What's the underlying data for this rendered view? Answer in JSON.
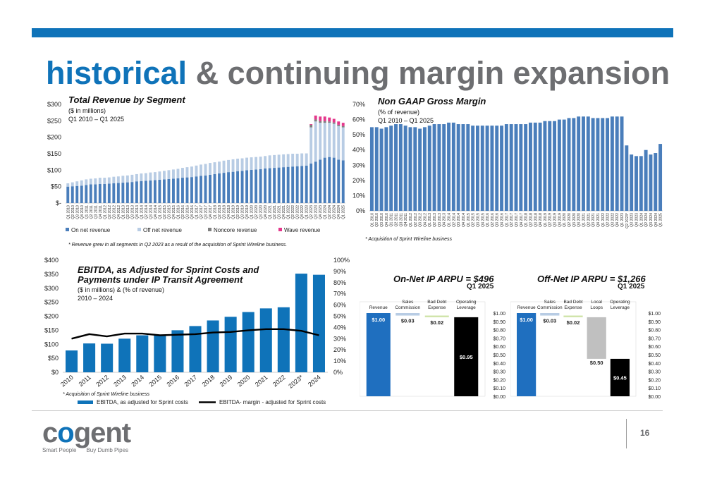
{
  "headline": {
    "highlight": "historical",
    "rest": "& continuing margin expansion"
  },
  "page_number": "16",
  "logo": {
    "word_pre": "c",
    "word_o": "o",
    "word_post": "gent",
    "tagline_left": "Smart People",
    "tagline_right": "Buy Dumb Pipes"
  },
  "colors": {
    "brand_blue": "#0f73b9",
    "grey": "#6d6e71",
    "on_net": "#4a7ebb",
    "off_net": "#b8cce4",
    "noncore": "#7f7f7f",
    "wave": "#e4388c"
  },
  "chart_data": [
    {
      "id": "revenue",
      "type": "bar",
      "title": "Total Revenue by Segment",
      "subtitle1": "($ in millions)",
      "subtitle2": "Q1 2010 – Q1 2025",
      "note": "*  Revenue grew in all segments in Q2 2023 as a result of  the acquisition of Sprint Wireline business.",
      "ylim": [
        0,
        300
      ],
      "yticks": [
        "$-",
        "$50",
        "$100",
        "$150",
        "$200",
        "$250",
        "$300"
      ],
      "categories": [
        "Q1 2010",
        "Q2 2010",
        "Q3 2010",
        "Q4 2010",
        "Q1 2011",
        "Q2 2011",
        "Q3 2011",
        "Q4 2011",
        "Q1 2012",
        "Q2 2012",
        "Q3 2012",
        "Q4 2012",
        "Q1 2013",
        "Q2 2013",
        "Q3 2013",
        "Q4 2013",
        "Q1 2014",
        "Q2 2014",
        "Q3 2014",
        "Q4 2014",
        "Q1 2015",
        "Q2 2015",
        "Q3 2015",
        "Q4 2015",
        "Q1 2016",
        "Q2 2016",
        "Q3 2016",
        "Q4 2016",
        "Q1 2017",
        "Q2 2017",
        "Q3 2017",
        "Q4 2017",
        "Q1 2018",
        "Q2 2018",
        "Q3 2018",
        "Q4 2018",
        "Q1 2019",
        "Q2 2019",
        "Q3 2019",
        "Q4 2019",
        "Q1 2020",
        "Q2 2020",
        "Q3 2020",
        "Q4 2020",
        "Q1 2021",
        "Q2 2021",
        "Q3 2021",
        "Q4 2021",
        "Q1 2022",
        "Q2 2022",
        "Q3 2022",
        "Q4 2022",
        "Q1 2023",
        "Q2 2023",
        "Q3 2023",
        "Q4 2023",
        "Q1 2024",
        "Q2 2024",
        "Q3 2024",
        "Q4 2024",
        "Q1 2025"
      ],
      "legend": [
        "On net revenue",
        "Off net revenue",
        "Noncore revenue",
        "Wave revenue"
      ],
      "series": [
        {
          "name": "On net revenue",
          "values": [
            50,
            51,
            52,
            53,
            55,
            57,
            57,
            58,
            58,
            59,
            60,
            61,
            62,
            63,
            64,
            66,
            67,
            68,
            69,
            70,
            71,
            72,
            73,
            74,
            75,
            77,
            78,
            79,
            81,
            83,
            84,
            86,
            88,
            90,
            92,
            94,
            95,
            97,
            98,
            100,
            101,
            102,
            103,
            105,
            106,
            107,
            108,
            109,
            110,
            111,
            112,
            113,
            114,
            120,
            126,
            132,
            138,
            140,
            138,
            132,
            130
          ]
        },
        {
          "name": "Off net revenue",
          "values": [
            10,
            12,
            14,
            16,
            17,
            17,
            18,
            19,
            19,
            19,
            20,
            20,
            21,
            21,
            22,
            22,
            23,
            23,
            24,
            24,
            25,
            26,
            27,
            28,
            29,
            30,
            31,
            32,
            33,
            34,
            35,
            36,
            36,
            36,
            37,
            37,
            38,
            38,
            38,
            38,
            38,
            38,
            38,
            38,
            39,
            39,
            39,
            39,
            39,
            39,
            38,
            38,
            37,
            110,
            122,
            112,
            106,
            104,
            103,
            102,
            100
          ]
        },
        {
          "name": "Noncore revenue",
          "values": [
            0,
            0,
            0,
            0,
            0,
            0,
            0,
            0,
            0,
            0,
            0,
            0,
            0,
            0,
            0,
            0,
            0,
            0,
            0,
            0,
            0,
            0,
            0,
            0,
            0,
            0,
            0,
            0,
            0,
            0,
            0,
            0,
            0,
            0,
            0,
            0,
            0,
            0,
            0,
            0,
            0,
            0,
            0,
            0,
            0,
            0,
            0,
            0,
            0,
            0,
            0,
            0,
            0,
            8,
            6,
            5,
            5,
            4,
            4,
            4,
            4
          ]
        },
        {
          "name": "Wave revenue",
          "values": [
            0,
            0,
            0,
            0,
            0,
            0,
            0,
            0,
            0,
            0,
            0,
            0,
            0,
            0,
            0,
            0,
            0,
            0,
            0,
            0,
            0,
            0,
            0,
            0,
            0,
            0,
            0,
            0,
            0,
            0,
            0,
            0,
            0,
            0,
            0,
            0,
            0,
            0,
            0,
            0,
            0,
            0,
            0,
            0,
            0,
            0,
            0,
            0,
            0,
            0,
            0,
            0,
            0,
            2,
            12,
            14,
            14,
            12,
            11,
            10,
            10
          ]
        }
      ]
    },
    {
      "id": "gross_margin",
      "type": "bar",
      "title": "Non GAAP Gross Margin",
      "subtitle1": "(% of revenue)",
      "subtitle2": "Q1 2010 – Q1 2025",
      "note": "* Acquisition of Sprint Wireline business",
      "ylim": [
        0,
        70
      ],
      "yticks": [
        "0%",
        "10%",
        "20%",
        "30%",
        "40%",
        "50%",
        "60%",
        "70%"
      ],
      "categories": [
        "Q1 2010",
        "Q2 2010",
        "Q3 2010",
        "Q4 2010",
        "Q1 2011",
        "Q2 2011",
        "Q3 2011",
        "Q4 2011",
        "Q1 2012",
        "Q2 2012",
        "Q3 2012",
        "Q4 2012",
        "Q1 2013",
        "Q2 2013",
        "Q3 2013",
        "Q4 2013",
        "Q1 2014",
        "Q2 2014",
        "Q3 2014",
        "Q4 2014",
        "Q1 2015",
        "Q2 2015",
        "Q3 2015",
        "Q4 2015",
        "Q1 2016",
        "Q2 2016",
        "Q3 2016",
        "Q4 2016",
        "Q1 2017",
        "Q2 2017",
        "Q3 2017",
        "Q4 2017",
        "Q1 2018",
        "Q2 2018",
        "Q3 2018",
        "Q4 2018",
        "Q1 2019",
        "Q2 2019",
        "Q3 2019",
        "Q4 2019",
        "Q1 2020",
        "Q2 2020",
        "Q3 2020",
        "Q4 2020",
        "Q1 2021",
        "Q2 2021",
        "Q3 2021",
        "Q4 2021",
        "Q1 2022",
        "Q2 2022",
        "Q3 2022",
        "Q4 2022",
        "Q1 2023",
        "Q2 2023*",
        "Q3 2023",
        "Q4 2023",
        "Q1 2024",
        "Q2 2024",
        "Q3 2024",
        "Q4 2024",
        "Q1 2025"
      ],
      "values": [
        55,
        55,
        54,
        55,
        56,
        57,
        57,
        56,
        55,
        55,
        54,
        55,
        56,
        57,
        57,
        57,
        58,
        58,
        57,
        57,
        57,
        56,
        56,
        56,
        56,
        56,
        56,
        56,
        57,
        57,
        57,
        57,
        57,
        58,
        58,
        58,
        59,
        59,
        59,
        60,
        60,
        61,
        61,
        62,
        62,
        62,
        61,
        61,
        61,
        61,
        62,
        62,
        62,
        43,
        37,
        36,
        36,
        40,
        37,
        38,
        44
      ]
    },
    {
      "id": "ebitda",
      "type": "bar",
      "title_line1": "EBITDA, as Adjusted for Sprint Costs and",
      "title_line2": "Payments under IP Transit Agreement",
      "subtitle1": "($ in millions) & (% of revenue)",
      "subtitle2": "2010 – 2024",
      "note": "* Acquisition of Sprint Wireline business",
      "ylim": [
        0,
        400
      ],
      "y2lim": [
        0,
        100
      ],
      "yticks": [
        "$0",
        "$50",
        "$100",
        "$150",
        "$200",
        "$250",
        "$300",
        "$350",
        "$400"
      ],
      "y2ticks": [
        "0%",
        "10%",
        "20%",
        "30%",
        "40%",
        "50%",
        "60%",
        "70%",
        "80%",
        "90%",
        "100%"
      ],
      "categories": [
        "2010",
        "2011",
        "2012",
        "2013",
        "2014",
        "2015",
        "2016",
        "2017",
        "2018",
        "2019",
        "2020",
        "2021",
        "2022",
        "2023*",
        "2024"
      ],
      "legend": [
        "EBITDA, as adjusted for Sprint costs",
        "EBITDA- margin - adjusted for Sprint costs"
      ],
      "series": [
        {
          "name": "EBITDA, as adjusted for Sprint costs",
          "values": [
            78,
            103,
            102,
            120,
            132,
            132,
            150,
            165,
            185,
            198,
            215,
            228,
            232,
            352,
            348
          ]
        },
        {
          "name": "EBITDA- margin - adjusted for Sprint costs",
          "values": [
            30,
            34,
            32,
            34.5,
            34.5,
            33,
            33.5,
            34,
            35.5,
            36,
            37.5,
            38.5,
            38.5,
            37,
            33
          ]
        }
      ]
    },
    {
      "id": "on_net_arpu",
      "type": "bar",
      "title": "On-Net IP ARPU = $496",
      "period": "Q1 2025",
      "categories": [
        "Revenue",
        "Sales Commission",
        "Bad Debt Expense",
        "Operating Leverage"
      ],
      "values": [
        1.0,
        0.03,
        0.02,
        0.95
      ],
      "labels": [
        "$1.00",
        "$0.03",
        "$0.02",
        "$0.95"
      ],
      "ylim": [
        0,
        1
      ],
      "yticks": [
        "$0.00",
        "$0.10",
        "$0.20",
        "$0.30",
        "$0.40",
        "$0.50",
        "$0.60",
        "$0.70",
        "$0.80",
        "$0.90",
        "$1.00"
      ]
    },
    {
      "id": "off_net_arpu",
      "type": "bar",
      "title": "Off-Net IP ARPU = $1,266",
      "period": "Q1 2025",
      "categories": [
        "Revenue",
        "Sales Commission",
        "Bad Debt Expense",
        "Local Loops",
        "Operating Leverage"
      ],
      "values": [
        1.0,
        0.03,
        0.02,
        0.5,
        0.45
      ],
      "labels": [
        "$1.00",
        "$0.03",
        "$0.02",
        "$0.50",
        "$0.45"
      ],
      "ylim": [
        0,
        1
      ],
      "yticks": [
        "$0.00",
        "$0.10",
        "$0.20",
        "$0.30",
        "$0.40",
        "$0.50",
        "$0.60",
        "$0.70",
        "$0.80",
        "$0.90",
        "$1.00"
      ]
    }
  ]
}
